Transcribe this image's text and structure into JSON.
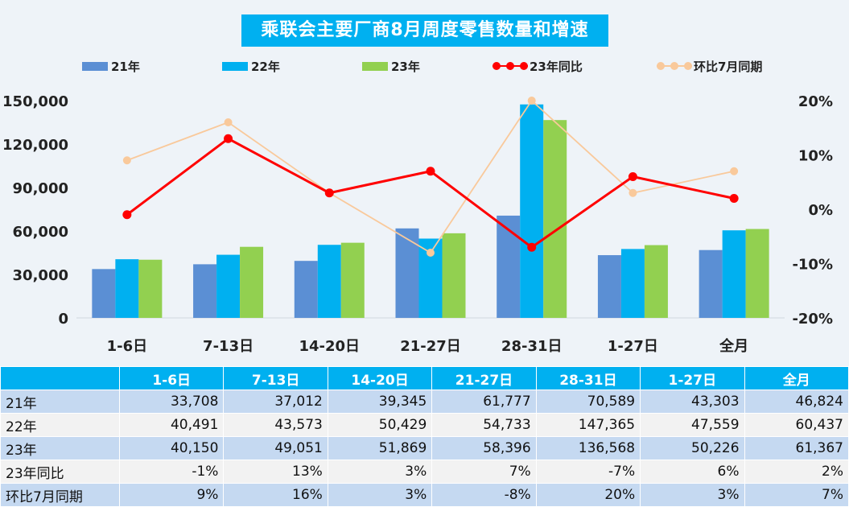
{
  "chart_data": {
    "type": "bar",
    "title": "乘联会主要厂商8月周度零售数量和增速",
    "categories": [
      "1-6日",
      "7-13日",
      "14-20日",
      "21-27日",
      "28-31日",
      "1-27日",
      "全月"
    ],
    "series": [
      {
        "name": "21年",
        "values": [
          33708,
          37012,
          39345,
          61777,
          70589,
          43303,
          46824
        ],
        "color": "#5b8fd4"
      },
      {
        "name": "22年",
        "values": [
          40491,
          43573,
          50429,
          54733,
          147365,
          47559,
          60437
        ],
        "color": "#00b0f0"
      },
      {
        "name": "23年",
        "values": [
          40150,
          49051,
          51869,
          58396,
          136568,
          50226,
          61367
        ],
        "color": "#92d050"
      }
    ],
    "line_series": [
      {
        "name": "23年同比",
        "values": [
          -1,
          13,
          3,
          7,
          -7,
          6,
          2
        ],
        "color": "#ff0000"
      },
      {
        "name": "环比7月同期",
        "values": [
          9,
          16,
          3,
          -8,
          20,
          3,
          7
        ],
        "color": "#f9c99b"
      }
    ],
    "ylim": [
      0,
      150000
    ],
    "y_ticks": [
      "0",
      "30,000",
      "60,000",
      "90,000",
      "120,000",
      "150,000"
    ],
    "y2lim": [
      -20,
      20
    ],
    "y2_ticks": [
      "-20%",
      "-10%",
      "0%",
      "10%",
      "20%"
    ],
    "legend": "top",
    "grid": false
  },
  "table": {
    "headers": [
      "",
      "1-6日",
      "7-13日",
      "14-20日",
      "21-27日",
      "28-31日",
      "1-27日",
      "全月"
    ],
    "rows": [
      [
        "21年",
        "33,708",
        "37,012",
        "39,345",
        "61,777",
        "70,589",
        "43,303",
        "46,824"
      ],
      [
        "22年",
        "40,491",
        "43,573",
        "50,429",
        "54,733",
        "147,365",
        "47,559",
        "60,437"
      ],
      [
        "23年",
        "40,150",
        "49,051",
        "51,869",
        "58,396",
        "136,568",
        "50,226",
        "61,367"
      ],
      [
        "23年同比",
        "-1%",
        "13%",
        "3%",
        "7%",
        "-7%",
        "6%",
        "2%"
      ],
      [
        "环比7月同期",
        "9%",
        "16%",
        "3%",
        "-8%",
        "20%",
        "3%",
        "7%"
      ]
    ]
  }
}
